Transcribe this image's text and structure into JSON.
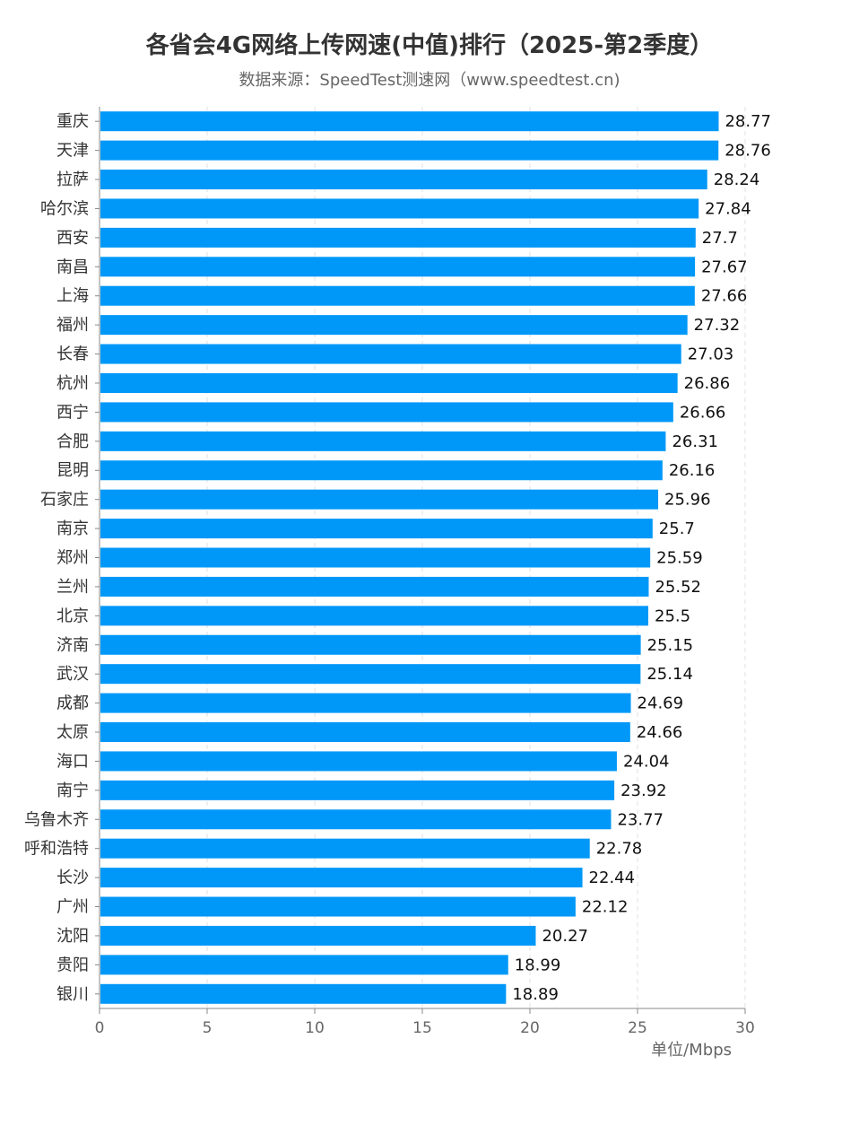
{
  "chart_data": {
    "type": "bar",
    "orientation": "horizontal",
    "title": "各省会4G网络上传网速(中值)排行（2025-第2季度）",
    "subtitle": "数据来源：SpeedTest测速网（www.speedtest.cn)",
    "unit_label": "单位/Mbps",
    "categories": [
      "重庆",
      "天津",
      "拉萨",
      "哈尔滨",
      "西安",
      "南昌",
      "上海",
      "福州",
      "长春",
      "杭州",
      "西宁",
      "合肥",
      "昆明",
      "石家庄",
      "南京",
      "郑州",
      "兰州",
      "北京",
      "济南",
      "武汉",
      "成都",
      "太原",
      "海口",
      "南宁",
      "乌鲁木齐",
      "呼和浩特",
      "长沙",
      "广州",
      "沈阳",
      "贵阳",
      "银川"
    ],
    "values": [
      28.77,
      28.76,
      28.24,
      27.84,
      27.7,
      27.67,
      27.66,
      27.32,
      27.03,
      26.86,
      26.66,
      26.31,
      26.16,
      25.96,
      25.7,
      25.59,
      25.52,
      25.5,
      25.15,
      25.14,
      24.69,
      24.66,
      24.04,
      23.92,
      23.77,
      22.78,
      22.44,
      22.12,
      20.27,
      18.99,
      18.89
    ],
    "value_labels": [
      "28.77",
      "28.76",
      "28.24",
      "27.84",
      "27.7",
      "27.67",
      "27.66",
      "27.32",
      "27.03",
      "26.86",
      "26.66",
      "26.31",
      "26.16",
      "25.96",
      "25.7",
      "25.59",
      "25.52",
      "25.5",
      "25.15",
      "25.14",
      "24.69",
      "24.66",
      "24.04",
      "23.92",
      "23.77",
      "22.78",
      "22.44",
      "22.12",
      "20.27",
      "18.99",
      "18.89"
    ],
    "xlim": [
      0,
      30
    ],
    "xticks": [
      "0",
      "5",
      "10",
      "15",
      "20",
      "25",
      "30"
    ],
    "grid": true,
    "bar_color": "#0098f8"
  }
}
